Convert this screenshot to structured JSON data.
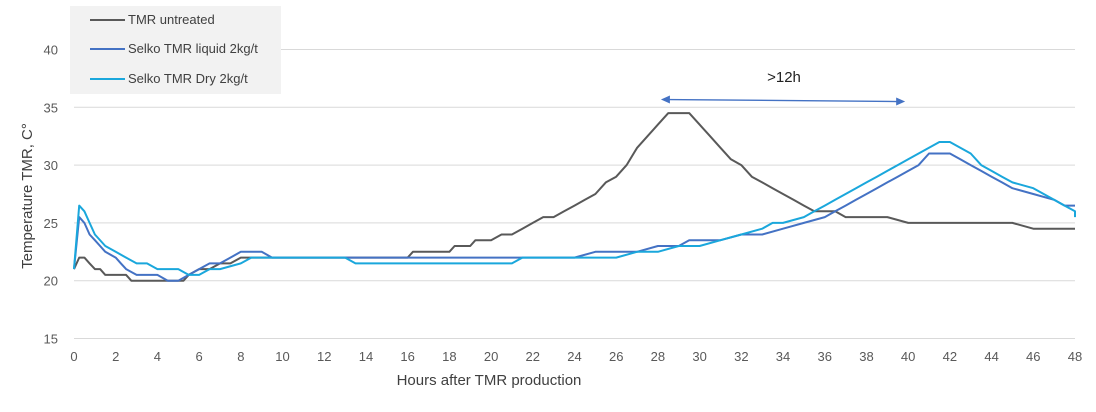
{
  "chart_data": {
    "type": "line",
    "title": "",
    "xlabel": "Hours after TMR production",
    "ylabel": "Temperature TMR, C°",
    "xlim": [
      0,
      48
    ],
    "ylim": [
      15,
      40
    ],
    "x_ticks": [
      0,
      2,
      4,
      6,
      8,
      10,
      12,
      14,
      16,
      18,
      20,
      22,
      24,
      26,
      28,
      30,
      32,
      34,
      36,
      38,
      40,
      42,
      44,
      46,
      48
    ],
    "y_ticks": [
      15,
      20,
      25,
      30,
      35,
      40
    ],
    "grid": "horizontal",
    "legend_position": "top-left",
    "annotation": {
      "text": ">12h",
      "x_start": 28,
      "x_end": 40,
      "y": 35.5,
      "color": "#4472c4"
    },
    "series": [
      {
        "name": "TMR untreated",
        "color": "#595959",
        "points": [
          [
            0,
            21
          ],
          [
            0.25,
            22
          ],
          [
            0.5,
            22
          ],
          [
            0.75,
            21.5
          ],
          [
            1,
            21
          ],
          [
            1.25,
            21
          ],
          [
            1.5,
            20.5
          ],
          [
            2,
            20.5
          ],
          [
            2.5,
            20.5
          ],
          [
            2.75,
            20
          ],
          [
            3,
            20
          ],
          [
            4,
            20
          ],
          [
            5,
            20
          ],
          [
            5.25,
            20
          ],
          [
            5.5,
            20.5
          ],
          [
            6,
            21
          ],
          [
            6.5,
            21
          ],
          [
            7,
            21.5
          ],
          [
            7.5,
            21.5
          ],
          [
            8,
            22
          ],
          [
            9,
            22
          ],
          [
            10,
            22
          ],
          [
            12,
            22
          ],
          [
            14,
            22
          ],
          [
            16,
            22
          ],
          [
            16.25,
            22.5
          ],
          [
            17,
            22.5
          ],
          [
            18,
            22.5
          ],
          [
            18.25,
            23
          ],
          [
            19,
            23
          ],
          [
            19.25,
            23.5
          ],
          [
            20,
            23.5
          ],
          [
            20.5,
            24
          ],
          [
            21,
            24
          ],
          [
            21.5,
            24.5
          ],
          [
            22,
            25
          ],
          [
            22.5,
            25.5
          ],
          [
            23,
            25.5
          ],
          [
            23.5,
            26
          ],
          [
            24,
            26.5
          ],
          [
            24.5,
            27
          ],
          [
            25,
            27.5
          ],
          [
            25.5,
            28.5
          ],
          [
            26,
            29
          ],
          [
            26.5,
            30
          ],
          [
            27,
            31.5
          ],
          [
            27.5,
            32.5
          ],
          [
            28,
            33.5
          ],
          [
            28.5,
            34.5
          ],
          [
            29,
            34.5
          ],
          [
            29.5,
            34.5
          ],
          [
            30,
            33.5
          ],
          [
            30.5,
            32.5
          ],
          [
            31,
            31.5
          ],
          [
            31.5,
            30.5
          ],
          [
            32,
            30
          ],
          [
            32.5,
            29
          ],
          [
            33,
            28.5
          ],
          [
            33.5,
            28
          ],
          [
            34,
            27.5
          ],
          [
            34.5,
            27
          ],
          [
            35,
            26.5
          ],
          [
            35.5,
            26
          ],
          [
            36,
            26
          ],
          [
            36.5,
            26
          ],
          [
            37,
            25.5
          ],
          [
            38,
            25.5
          ],
          [
            39,
            25.5
          ],
          [
            40,
            25
          ],
          [
            42,
            25
          ],
          [
            44,
            25
          ],
          [
            45,
            25
          ],
          [
            46,
            24.5
          ],
          [
            47,
            24.5
          ],
          [
            48,
            24.5
          ]
        ]
      },
      {
        "name": "Selko TMR liquid 2kg/t",
        "color": "#4472c4",
        "points": [
          [
            0,
            21
          ],
          [
            0.25,
            25.5
          ],
          [
            0.5,
            25
          ],
          [
            0.75,
            24
          ],
          [
            1,
            23.5
          ],
          [
            1.25,
            23
          ],
          [
            1.5,
            22.5
          ],
          [
            2,
            22
          ],
          [
            2.25,
            21.5
          ],
          [
            2.5,
            21
          ],
          [
            3,
            20.5
          ],
          [
            4,
            20.5
          ],
          [
            4.5,
            20
          ],
          [
            5,
            20
          ],
          [
            5.5,
            20.5
          ],
          [
            6,
            21
          ],
          [
            6.5,
            21.5
          ],
          [
            7,
            21.5
          ],
          [
            7.5,
            22
          ],
          [
            8,
            22.5
          ],
          [
            9,
            22.5
          ],
          [
            9.5,
            22
          ],
          [
            10,
            22
          ],
          [
            12,
            22
          ],
          [
            14,
            22
          ],
          [
            15,
            22
          ],
          [
            16,
            22
          ],
          [
            17,
            22
          ],
          [
            18,
            22
          ],
          [
            19,
            22
          ],
          [
            20,
            22
          ],
          [
            21,
            22
          ],
          [
            22,
            22
          ],
          [
            23,
            22
          ],
          [
            24,
            22
          ],
          [
            25,
            22.5
          ],
          [
            26,
            22.5
          ],
          [
            27,
            22.5
          ],
          [
            28,
            23
          ],
          [
            29,
            23
          ],
          [
            29.5,
            23.5
          ],
          [
            30,
            23.5
          ],
          [
            31,
            23.5
          ],
          [
            32,
            24
          ],
          [
            33,
            24
          ],
          [
            34,
            24.5
          ],
          [
            35,
            25
          ],
          [
            36,
            25.5
          ],
          [
            36.5,
            26
          ],
          [
            37,
            26.5
          ],
          [
            37.5,
            27
          ],
          [
            38,
            27.5
          ],
          [
            38.5,
            28
          ],
          [
            39,
            28.5
          ],
          [
            39.5,
            29
          ],
          [
            40,
            29.5
          ],
          [
            40.5,
            30
          ],
          [
            41,
            31
          ],
          [
            42,
            31
          ],
          [
            42.5,
            30.5
          ],
          [
            43,
            30
          ],
          [
            43.5,
            29.5
          ],
          [
            44,
            29
          ],
          [
            44.5,
            28.5
          ],
          [
            45,
            28
          ],
          [
            46,
            27.5
          ],
          [
            47,
            27
          ],
          [
            47.5,
            26.5
          ],
          [
            48,
            26.5
          ]
        ]
      },
      {
        "name": "Selko TMR Dry 2kg/t",
        "color": "#1aa7dc",
        "points": [
          [
            0,
            21
          ],
          [
            0.25,
            26.5
          ],
          [
            0.5,
            26
          ],
          [
            0.75,
            25
          ],
          [
            1,
            24
          ],
          [
            1.5,
            23
          ],
          [
            2,
            22.5
          ],
          [
            2.5,
            22
          ],
          [
            3,
            21.5
          ],
          [
            3.5,
            21.5
          ],
          [
            4,
            21
          ],
          [
            5,
            21
          ],
          [
            5.5,
            20.5
          ],
          [
            6,
            20.5
          ],
          [
            6.5,
            21
          ],
          [
            7,
            21
          ],
          [
            8,
            21.5
          ],
          [
            8.5,
            22
          ],
          [
            9,
            22
          ],
          [
            10,
            22
          ],
          [
            12,
            22
          ],
          [
            13,
            22
          ],
          [
            13.5,
            21.5
          ],
          [
            14,
            21.5
          ],
          [
            16,
            21.5
          ],
          [
            18,
            21.5
          ],
          [
            20,
            21.5
          ],
          [
            21,
            21.5
          ],
          [
            21.5,
            22
          ],
          [
            23,
            22
          ],
          [
            25,
            22
          ],
          [
            26,
            22
          ],
          [
            27,
            22.5
          ],
          [
            28,
            22.5
          ],
          [
            29,
            23
          ],
          [
            30,
            23
          ],
          [
            31,
            23.5
          ],
          [
            32,
            24
          ],
          [
            33,
            24.5
          ],
          [
            33.5,
            25
          ],
          [
            34,
            25
          ],
          [
            35,
            25.5
          ],
          [
            35.5,
            26
          ],
          [
            36,
            26.5
          ],
          [
            36.5,
            27
          ],
          [
            37,
            27.5
          ],
          [
            37.5,
            28
          ],
          [
            38,
            28.5
          ],
          [
            38.5,
            29
          ],
          [
            39,
            29.5
          ],
          [
            39.5,
            30
          ],
          [
            40,
            30.5
          ],
          [
            40.5,
            31
          ],
          [
            41,
            31.5
          ],
          [
            41.5,
            32
          ],
          [
            42,
            32
          ],
          [
            42.5,
            31.5
          ],
          [
            43,
            31
          ],
          [
            43.5,
            30
          ],
          [
            44,
            29.5
          ],
          [
            44.5,
            29
          ],
          [
            45,
            28.5
          ],
          [
            46,
            28
          ],
          [
            46.5,
            27.5
          ],
          [
            47,
            27
          ],
          [
            47.5,
            26.5
          ],
          [
            48,
            26
          ],
          [
            48,
            25.5
          ]
        ]
      }
    ]
  }
}
